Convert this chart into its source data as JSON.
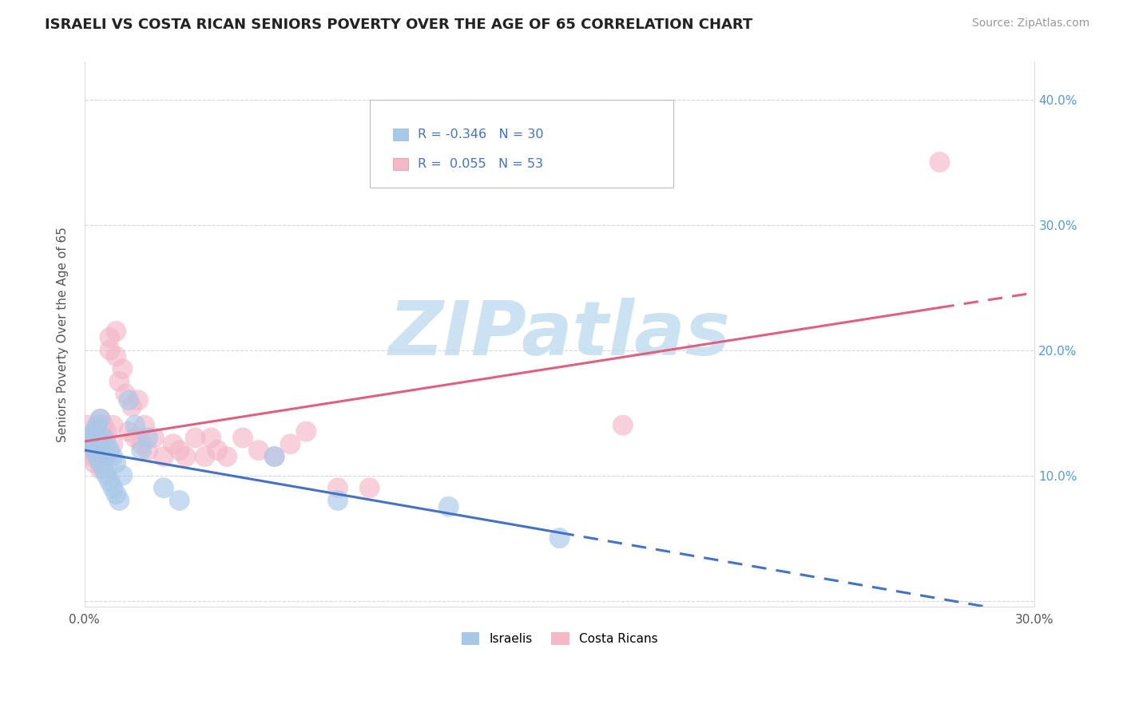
{
  "title": "ISRAELI VS COSTA RICAN SENIORS POVERTY OVER THE AGE OF 65 CORRELATION CHART",
  "source": "Source: ZipAtlas.com",
  "ylabel": "Seniors Poverty Over the Age of 65",
  "xlim": [
    0.0,
    0.3
  ],
  "ylim": [
    -0.005,
    0.43
  ],
  "xticks": [
    0.0,
    0.05,
    0.1,
    0.15,
    0.2,
    0.25,
    0.3
  ],
  "yticks": [
    0.0,
    0.1,
    0.2,
    0.3,
    0.4
  ],
  "ytick_labels": [
    "",
    "10.0%",
    "20.0%",
    "30.0%",
    "40.0%"
  ],
  "xtick_labels": [
    "0.0%",
    "",
    "",
    "",
    "",
    "",
    "30.0%"
  ],
  "israeli_color": "#a8c8e8",
  "costa_rican_color": "#f4b8c8",
  "trend_israeli_color": "#4472c4",
  "trend_costa_rican_color": "#e06080",
  "R_israeli": -0.346,
  "N_israeli": 30,
  "R_costa_rican": 0.055,
  "N_costa_rican": 53,
  "legend_label_israeli": "Israelis",
  "legend_label_costa_rican": "Costa Ricans",
  "background_color": "#ffffff",
  "grid_color": "#cccccc",
  "watermark": "ZIPatlas",
  "watermark_color_zip": "#b8d8e8",
  "watermark_color_atlas": "#b0c8d8",
  "israeli_x": [
    0.001,
    0.002,
    0.003,
    0.003,
    0.004,
    0.004,
    0.005,
    0.005,
    0.006,
    0.006,
    0.007,
    0.007,
    0.008,
    0.008,
    0.009,
    0.009,
    0.01,
    0.01,
    0.011,
    0.012,
    0.014,
    0.016,
    0.018,
    0.02,
    0.025,
    0.03,
    0.06,
    0.08,
    0.115,
    0.15
  ],
  "israeli_y": [
    0.13,
    0.125,
    0.12,
    0.135,
    0.115,
    0.14,
    0.11,
    0.145,
    0.105,
    0.13,
    0.1,
    0.125,
    0.095,
    0.12,
    0.09,
    0.115,
    0.085,
    0.11,
    0.08,
    0.1,
    0.16,
    0.14,
    0.12,
    0.13,
    0.09,
    0.08,
    0.115,
    0.08,
    0.075,
    0.05
  ],
  "costa_rican_x": [
    0.001,
    0.001,
    0.002,
    0.002,
    0.003,
    0.003,
    0.003,
    0.004,
    0.004,
    0.004,
    0.005,
    0.005,
    0.005,
    0.006,
    0.006,
    0.006,
    0.007,
    0.007,
    0.008,
    0.008,
    0.009,
    0.009,
    0.01,
    0.01,
    0.011,
    0.012,
    0.013,
    0.014,
    0.015,
    0.016,
    0.017,
    0.018,
    0.019,
    0.02,
    0.022,
    0.025,
    0.028,
    0.03,
    0.032,
    0.035,
    0.038,
    0.04,
    0.042,
    0.045,
    0.05,
    0.055,
    0.06,
    0.065,
    0.07,
    0.08,
    0.09,
    0.17,
    0.27
  ],
  "costa_rican_y": [
    0.13,
    0.14,
    0.125,
    0.115,
    0.13,
    0.12,
    0.11,
    0.135,
    0.125,
    0.115,
    0.145,
    0.125,
    0.105,
    0.14,
    0.13,
    0.115,
    0.135,
    0.115,
    0.2,
    0.21,
    0.14,
    0.125,
    0.215,
    0.195,
    0.175,
    0.185,
    0.165,
    0.135,
    0.155,
    0.13,
    0.16,
    0.125,
    0.14,
    0.12,
    0.13,
    0.115,
    0.125,
    0.12,
    0.115,
    0.13,
    0.115,
    0.13,
    0.12,
    0.115,
    0.13,
    0.12,
    0.115,
    0.125,
    0.135,
    0.09,
    0.09,
    0.14,
    0.35
  ]
}
